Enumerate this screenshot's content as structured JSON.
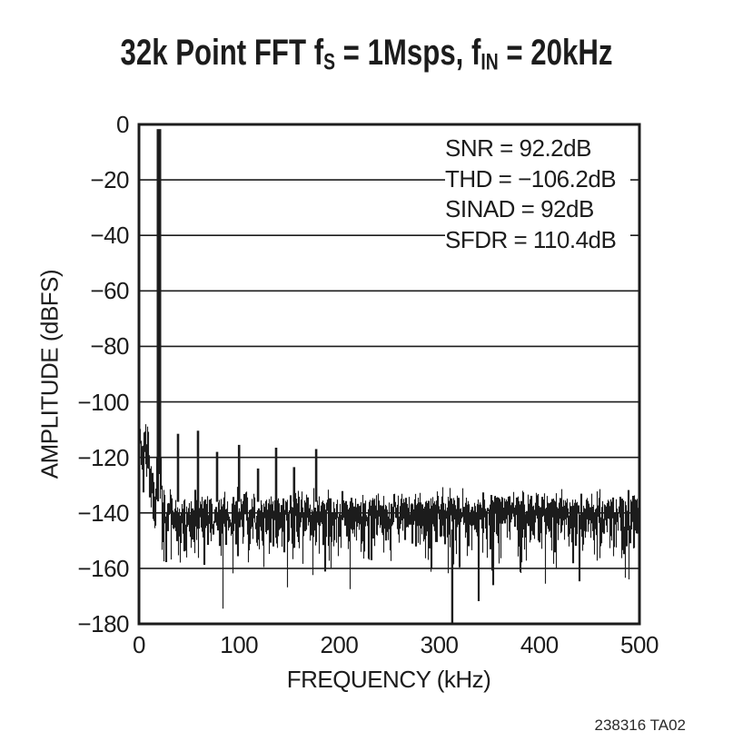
{
  "page": {
    "background": "#ffffff",
    "ink_color": "#1c1c1c"
  },
  "chart_data": {
    "type": "line",
    "subtype": "fft-spectrum",
    "title": "32k Point FFT fS = 1Msps, fIN = 20kHz",
    "title_parts": {
      "p1": "32k Point FFT f",
      "s1": "S",
      "p2": " = 1Msps, f",
      "s2": "IN",
      "p3": " = 20kHz"
    },
    "xlabel": "FREQUENCY (kHz)",
    "ylabel": "AMPLITUDE (dBFS)",
    "xlim": [
      0,
      500
    ],
    "ylim": [
      -180,
      0
    ],
    "x_ticks": [
      0,
      100,
      200,
      300,
      400,
      500
    ],
    "x_tick_labels": [
      "0",
      "100",
      "200",
      "300",
      "400",
      "500"
    ],
    "y_ticks": [
      0,
      -20,
      -40,
      -60,
      -80,
      -100,
      -120,
      -140,
      -160,
      -180
    ],
    "y_tick_labels": [
      "0",
      "−20",
      "−40",
      "−60",
      "−80",
      "−100",
      "−120",
      "−140",
      "−160",
      "−180"
    ],
    "grid": "horizontal-only",
    "legend": "none",
    "annotation_lines": [
      "SNR = 92.2dB",
      "THD = −106.2dB",
      "SINAD = 92dB",
      "SFDR = 110.4dB"
    ],
    "stats": {
      "snr_db": 92.2,
      "thd_db": -106.2,
      "sinad_db": 92,
      "sfdr_db": 110.4
    },
    "signal": {
      "freq_khz": 20,
      "amplitude_dbfs": -1.7
    },
    "spurs": [
      {
        "freq_khz": 39,
        "amplitude_dbfs": -111.5
      },
      {
        "freq_khz": 59,
        "amplitude_dbfs": -110.4
      },
      {
        "freq_khz": 78,
        "amplitude_dbfs": -118.0
      },
      {
        "freq_khz": 100,
        "amplitude_dbfs": -115.5
      },
      {
        "freq_khz": 119,
        "amplitude_dbfs": -124.0
      },
      {
        "freq_khz": 137,
        "amplitude_dbfs": -116.5
      },
      {
        "freq_khz": 155,
        "amplitude_dbfs": -123.5
      },
      {
        "freq_khz": 177,
        "amplitude_dbfs": -117.0
      }
    ],
    "notch": {
      "freq_khz": 313,
      "amplitude_dbfs": -180
    },
    "noise_model": {
      "seed": 7,
      "floor_dbfs": -141,
      "bins_per_column": 4,
      "dc_hump": {
        "amp_db": 49,
        "decay_khz": 1.3
      },
      "lf_bump": {
        "amp_db": 27,
        "center_khz": 7,
        "width": 30
      },
      "carrier_skirt": {
        "amp_db": 30,
        "decay_khz": 2.5
      },
      "clamps": {
        "lf_cut_khz": 2,
        "lf_top": -88,
        "mid_cut_khz": 30,
        "mid_top": -104,
        "top": -120,
        "bottom": -176
      }
    },
    "footnote": "238316 TA02"
  }
}
